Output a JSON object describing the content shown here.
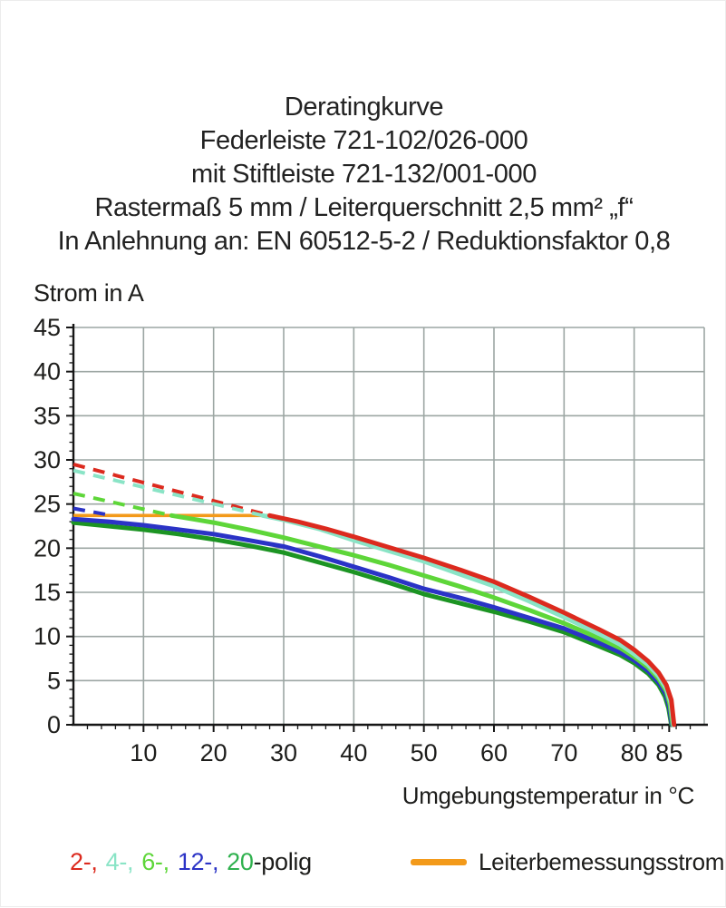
{
  "title": {
    "lines": [
      "Deratingkurve",
      "Federleiste 721-102/026-000",
      "mit Stiftleiste 721-132/001-000",
      "Rastermaß 5 mm / Leiterquerschnitt 2,5 mm² „f“",
      "In Anlehnung an: EN 60512-5-2 / Reduktionsfaktor 0,8"
    ]
  },
  "axes": {
    "y_label": "Strom in A",
    "x_label": "Umgebungstemperatur in °C"
  },
  "legend_poles": {
    "items": [
      {
        "label": "2-,",
        "color": "#dc2a1e"
      },
      {
        "label": "4-,",
        "color": "#8ae4c6"
      },
      {
        "label": "6-,",
        "color": "#5ed639"
      },
      {
        "label": "12-,",
        "color": "#2b33c6"
      },
      {
        "label": "20",
        "color": "#2fb14e"
      }
    ],
    "suffix": "-polig"
  },
  "legend_rated": {
    "label": "Leiterbemessungsstrom",
    "color": "#f39a1a"
  },
  "chart_data": {
    "type": "line",
    "title": "Deratingkurve",
    "xlabel": "Umgebungstemperatur in °C",
    "ylabel": "Strom in A",
    "xlim": [
      0,
      90
    ],
    "ylim": [
      0,
      45
    ],
    "grid": true,
    "grid_color": "#9ca6a3",
    "axis_color": "#161616",
    "text_color": "#1d1d1b",
    "x_ticks_major": [
      10,
      20,
      30,
      40,
      50,
      60,
      70,
      80,
      85
    ],
    "x_grid_lines": [
      10,
      20,
      30,
      40,
      50,
      60,
      70,
      80,
      90
    ],
    "y_ticks_major": [
      0,
      5,
      10,
      15,
      20,
      25,
      30,
      35,
      40,
      45
    ],
    "x_tick_minor_step": 2,
    "y_tick_minor_step": 1,
    "rated_current_line": {
      "label": "Leiterbemessungsstrom",
      "color": "#f39a1a",
      "y": 23.7,
      "x_range": [
        0,
        28.5
      ]
    },
    "series": [
      {
        "name": "2-polig-unlimited",
        "style": "dashed",
        "color": "#dc2a1e",
        "points": [
          [
            0,
            29.5
          ],
          [
            28,
            23.7
          ]
        ]
      },
      {
        "name": "4-polig-unlimited",
        "style": "dashed",
        "color": "#8ae4c6",
        "points": [
          [
            0,
            28.8
          ],
          [
            27,
            23.7
          ]
        ]
      },
      {
        "name": "6-polig-unlimited",
        "style": "dashed",
        "color": "#5ed639",
        "points": [
          [
            0,
            26.2
          ],
          [
            14,
            23.7
          ]
        ]
      },
      {
        "name": "12-polig-unlimited",
        "style": "dashed",
        "color": "#2b33c6",
        "points": [
          [
            0,
            24.5
          ],
          [
            5.5,
            23.7
          ]
        ]
      },
      {
        "name": "20-polig",
        "style": "solid",
        "color": "#1c9423",
        "points": [
          [
            0,
            22.9
          ],
          [
            5,
            22.5
          ],
          [
            10,
            22.1
          ],
          [
            15,
            21.6
          ],
          [
            20,
            21.0
          ],
          [
            25,
            20.3
          ],
          [
            30,
            19.5
          ],
          [
            35,
            18.4
          ],
          [
            40,
            17.3
          ],
          [
            45,
            16.1
          ],
          [
            50,
            14.8
          ],
          [
            55,
            13.8
          ],
          [
            60,
            12.8
          ],
          [
            65,
            11.7
          ],
          [
            70,
            10.5
          ],
          [
            75,
            8.9
          ],
          [
            78,
            7.9
          ],
          [
            80,
            7.0
          ],
          [
            82,
            5.8
          ],
          [
            83.5,
            4.5
          ],
          [
            84.4,
            3.2
          ],
          [
            84.9,
            1.9
          ],
          [
            85.3,
            0
          ]
        ]
      },
      {
        "name": "12-polig",
        "style": "solid",
        "color": "#2b33c6",
        "points": [
          [
            0,
            23.3
          ],
          [
            5,
            23.0
          ],
          [
            10,
            22.6
          ],
          [
            15,
            22.1
          ],
          [
            20,
            21.6
          ],
          [
            25,
            20.9
          ],
          [
            30,
            20.2
          ],
          [
            35,
            19.1
          ],
          [
            40,
            17.9
          ],
          [
            45,
            16.7
          ],
          [
            50,
            15.4
          ],
          [
            55,
            14.4
          ],
          [
            60,
            13.3
          ],
          [
            65,
            12.1
          ],
          [
            70,
            10.9
          ],
          [
            75,
            9.3
          ],
          [
            78,
            8.2
          ],
          [
            80,
            7.3
          ],
          [
            82,
            6.1
          ],
          [
            83.5,
            4.8
          ],
          [
            84.5,
            3.5
          ],
          [
            85,
            2.1
          ],
          [
            85.4,
            0
          ]
        ]
      },
      {
        "name": "6-polig",
        "style": "solid",
        "color": "#5ed639",
        "points": [
          [
            14,
            23.7
          ],
          [
            17,
            23.3
          ],
          [
            20,
            22.9
          ],
          [
            25,
            22.1
          ],
          [
            30,
            21.2
          ],
          [
            35,
            20.2
          ],
          [
            40,
            19.2
          ],
          [
            45,
            18.1
          ],
          [
            50,
            16.9
          ],
          [
            55,
            15.7
          ],
          [
            60,
            14.4
          ],
          [
            65,
            13.0
          ],
          [
            70,
            11.5
          ],
          [
            75,
            9.8
          ],
          [
            78,
            8.7
          ],
          [
            80,
            7.7
          ],
          [
            82,
            6.5
          ],
          [
            83.5,
            5.2
          ],
          [
            84.6,
            3.8
          ],
          [
            85.1,
            2.3
          ],
          [
            85.5,
            0
          ]
        ]
      },
      {
        "name": "4-polig",
        "style": "solid",
        "color": "#8ae4c6",
        "points": [
          [
            27,
            23.7
          ],
          [
            30,
            23.2
          ],
          [
            35,
            22.2
          ],
          [
            40,
            20.9
          ],
          [
            45,
            19.7
          ],
          [
            50,
            18.5
          ],
          [
            55,
            17.1
          ],
          [
            60,
            15.7
          ],
          [
            65,
            14.0
          ],
          [
            70,
            12.2
          ],
          [
            75,
            10.3
          ],
          [
            78,
            9.1
          ],
          [
            80,
            8.0
          ],
          [
            82,
            6.8
          ],
          [
            83.5,
            5.5
          ],
          [
            84.6,
            4.1
          ],
          [
            85.2,
            2.5
          ],
          [
            85.6,
            0
          ]
        ]
      },
      {
        "name": "2-polig",
        "style": "solid",
        "color": "#dc2a1e",
        "points": [
          [
            28,
            23.7
          ],
          [
            32,
            23.0
          ],
          [
            36,
            22.2
          ],
          [
            40,
            21.3
          ],
          [
            45,
            20.1
          ],
          [
            50,
            18.9
          ],
          [
            55,
            17.6
          ],
          [
            60,
            16.2
          ],
          [
            65,
            14.5
          ],
          [
            70,
            12.7
          ],
          [
            75,
            10.8
          ],
          [
            78,
            9.6
          ],
          [
            80,
            8.5
          ],
          [
            82,
            7.2
          ],
          [
            83.5,
            5.9
          ],
          [
            84.6,
            4.5
          ],
          [
            85.3,
            2.8
          ],
          [
            85.7,
            0
          ]
        ]
      }
    ]
  }
}
